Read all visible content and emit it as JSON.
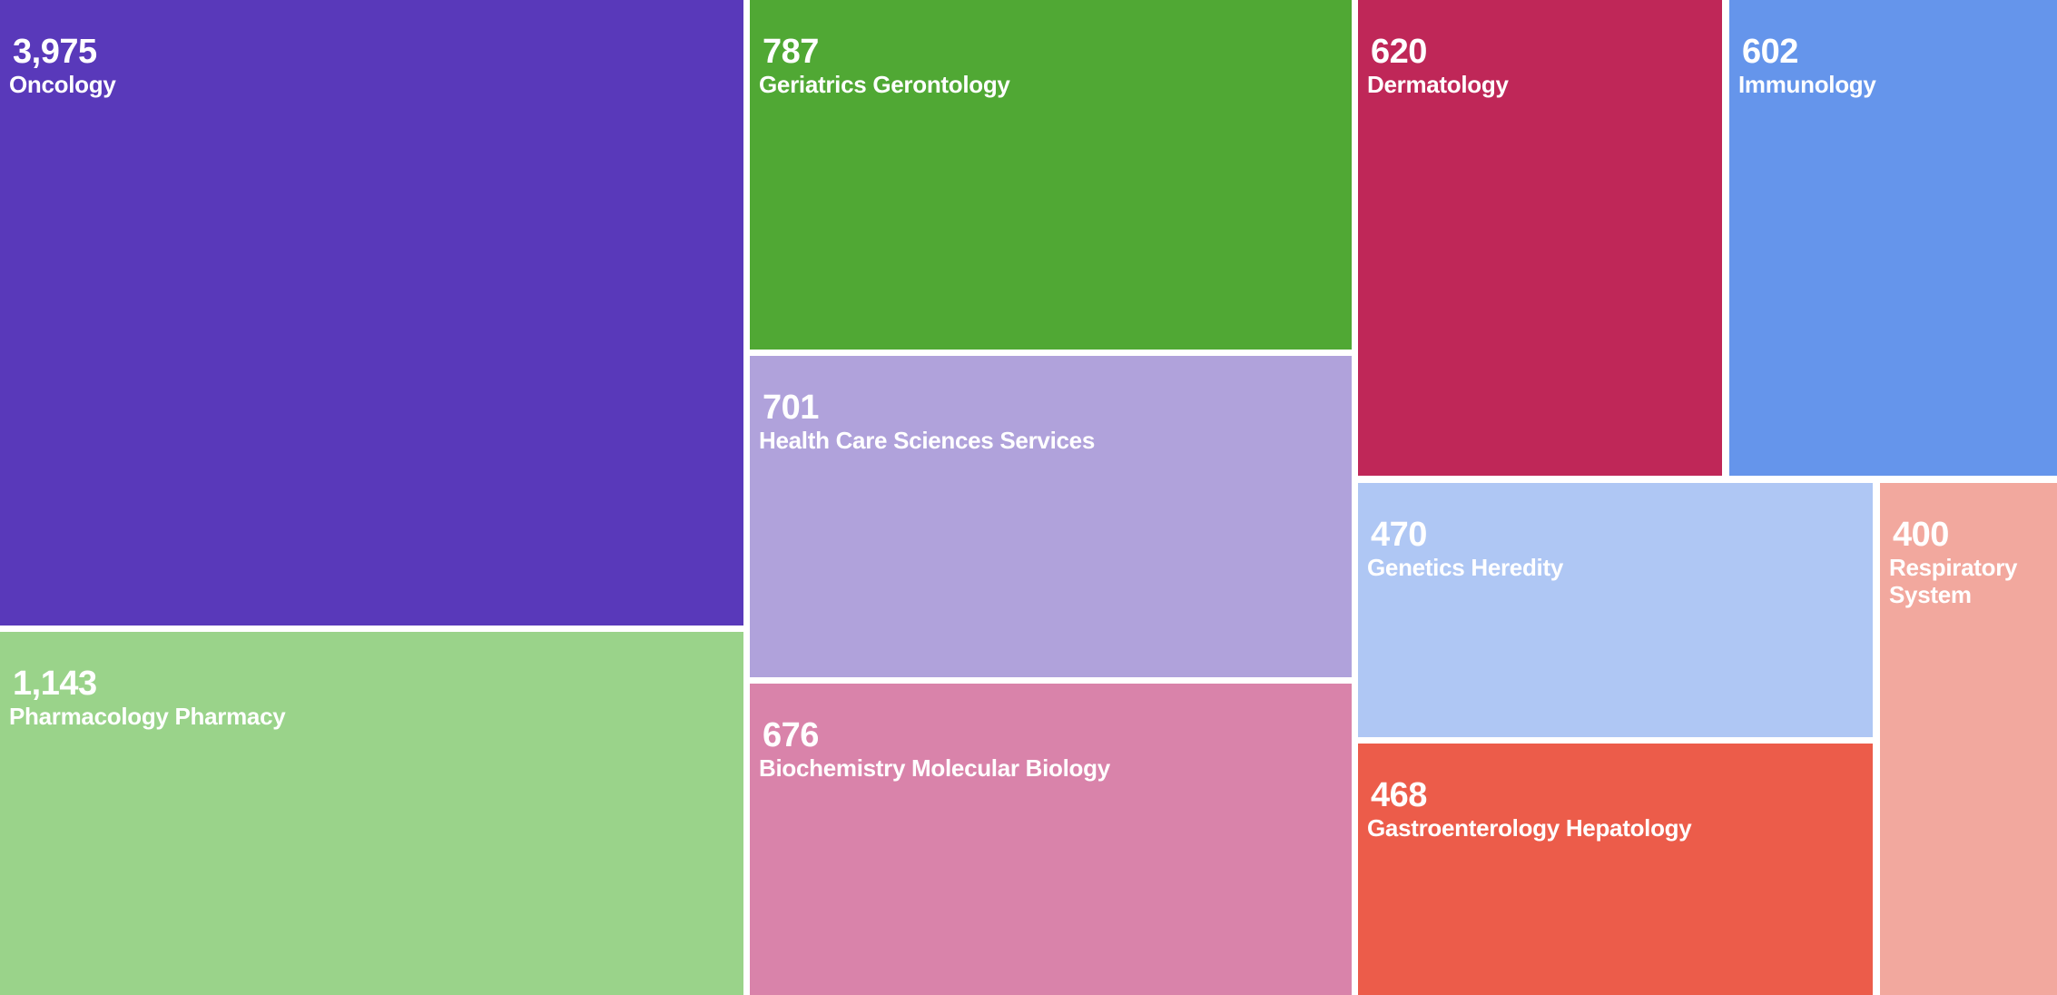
{
  "chart_data": {
    "type": "treemap",
    "items": [
      {
        "label": "Oncology",
        "value": 3975,
        "display": "3,975",
        "color": "#5939BA"
      },
      {
        "label": "Pharmacology Pharmacy",
        "value": 1143,
        "display": "1,143",
        "color": "#9AD38A"
      },
      {
        "label": "Geriatrics Gerontology",
        "value": 787,
        "display": "787",
        "color": "#50A834"
      },
      {
        "label": "Health Care Sciences Services",
        "value": 701,
        "display": "701",
        "color": "#B0A2DB"
      },
      {
        "label": "Biochemistry Molecular Biology",
        "value": 676,
        "display": "676",
        "color": "#D983AA"
      },
      {
        "label": "Dermatology",
        "value": 620,
        "display": "620",
        "color": "#BF2758"
      },
      {
        "label": "Immunology",
        "value": 602,
        "display": "602",
        "color": "#6595EB"
      },
      {
        "label": "Genetics Heredity",
        "value": 470,
        "display": "470",
        "color": "#AFC7F4"
      },
      {
        "label": "Gastroenterology Hepatology",
        "value": 468,
        "display": "468",
        "color": "#EC5C4A"
      },
      {
        "label": "Respiratory System",
        "value": 400,
        "display": "400",
        "color": "#F2A89E"
      }
    ]
  }
}
